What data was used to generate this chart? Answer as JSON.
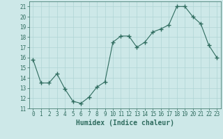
{
  "xlabel": "Humidex (Indice chaleur)",
  "x": [
    0,
    1,
    2,
    3,
    4,
    5,
    6,
    7,
    8,
    9,
    10,
    11,
    12,
    13,
    14,
    15,
    16,
    17,
    18,
    19,
    20,
    21,
    22,
    23
  ],
  "y": [
    15.8,
    13.5,
    13.5,
    14.4,
    12.9,
    11.7,
    11.5,
    12.1,
    13.1,
    13.6,
    17.5,
    18.1,
    18.1,
    17.0,
    17.5,
    18.5,
    18.8,
    19.2,
    21.0,
    21.0,
    20.0,
    19.3,
    17.2,
    16.0
  ],
  "line_color": "#2e6b5e",
  "marker": "+",
  "marker_size": 4,
  "bg_color": "#cde8e8",
  "grid_color": "#afd4d4",
  "ylim": [
    11,
    21.5
  ],
  "xlim": [
    -0.5,
    23.5
  ],
  "yticks": [
    11,
    12,
    13,
    14,
    15,
    16,
    17,
    18,
    19,
    20,
    21
  ],
  "xticks": [
    0,
    1,
    2,
    3,
    4,
    5,
    6,
    7,
    8,
    9,
    10,
    11,
    12,
    13,
    14,
    15,
    16,
    17,
    18,
    19,
    20,
    21,
    22,
    23
  ],
  "tick_fontsize": 5.5,
  "xlabel_fontsize": 7,
  "label_color": "#2e6b5e"
}
